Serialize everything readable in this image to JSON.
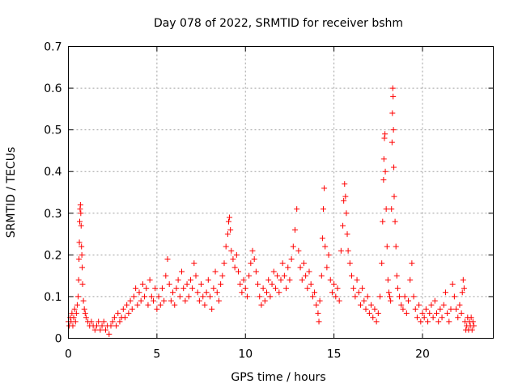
{
  "chart_data": {
    "type": "scatter",
    "title": "Day 078 of 2022, SRMTID for receiver bshm",
    "xlabel": "GPS time / hours",
    "ylabel": "SRMTID / TECUs",
    "xlim": [
      0,
      24
    ],
    "ylim": [
      0,
      0.7
    ],
    "xticks": [
      0,
      5,
      10,
      15,
      20
    ],
    "yticks": [
      0,
      0.1,
      0.2,
      0.3,
      0.4,
      0.5,
      0.6,
      0.7
    ],
    "xtick_labels": [
      "0",
      "5",
      "10",
      "15",
      "20"
    ],
    "ytick_labels": [
      "0",
      "0.1",
      "0.2",
      "0.3",
      "0.4",
      "0.5",
      "0.6",
      "0.7"
    ],
    "grid": true,
    "marker": "+",
    "color": "#ff0000",
    "series": [
      {
        "name": "SRMTID",
        "points": [
          [
            0.0,
            0.04
          ],
          [
            0.05,
            0.03
          ],
          [
            0.1,
            0.05
          ],
          [
            0.15,
            0.04
          ],
          [
            0.2,
            0.06
          ],
          [
            0.25,
            0.03
          ],
          [
            0.3,
            0.05
          ],
          [
            0.35,
            0.07
          ],
          [
            0.4,
            0.04
          ],
          [
            0.45,
            0.06
          ],
          [
            0.5,
            0.08
          ],
          [
            0.55,
            0.1
          ],
          [
            0.58,
            0.14
          ],
          [
            0.6,
            0.19
          ],
          [
            0.62,
            0.23
          ],
          [
            0.64,
            0.28
          ],
          [
            0.66,
            0.31
          ],
          [
            0.68,
            0.32
          ],
          [
            0.7,
            0.3
          ],
          [
            0.72,
            0.27
          ],
          [
            0.74,
            0.22
          ],
          [
            0.76,
            0.2
          ],
          [
            0.78,
            0.17
          ],
          [
            0.8,
            0.13
          ],
          [
            0.85,
            0.09
          ],
          [
            0.9,
            0.07
          ],
          [
            0.95,
            0.06
          ],
          [
            1.0,
            0.05
          ],
          [
            1.1,
            0.04
          ],
          [
            1.2,
            0.03
          ],
          [
            1.3,
            0.04
          ],
          [
            1.4,
            0.03
          ],
          [
            1.5,
            0.02
          ],
          [
            1.6,
            0.03
          ],
          [
            1.7,
            0.04
          ],
          [
            1.8,
            0.02
          ],
          [
            1.9,
            0.03
          ],
          [
            2.0,
            0.04
          ],
          [
            2.1,
            0.02
          ],
          [
            2.2,
            0.03
          ],
          [
            2.3,
            0.01
          ],
          [
            2.4,
            0.03
          ],
          [
            2.5,
            0.04
          ],
          [
            2.6,
            0.05
          ],
          [
            2.7,
            0.03
          ],
          [
            2.8,
            0.06
          ],
          [
            2.9,
            0.04
          ],
          [
            3.0,
            0.05
          ],
          [
            3.1,
            0.07
          ],
          [
            3.2,
            0.05
          ],
          [
            3.3,
            0.08
          ],
          [
            3.4,
            0.06
          ],
          [
            3.5,
            0.09
          ],
          [
            3.6,
            0.07
          ],
          [
            3.7,
            0.1
          ],
          [
            3.8,
            0.12
          ],
          [
            3.9,
            0.08
          ],
          [
            4.0,
            0.11
          ],
          [
            4.1,
            0.09
          ],
          [
            4.2,
            0.13
          ],
          [
            4.3,
            0.1
          ],
          [
            4.4,
            0.12
          ],
          [
            4.5,
            0.08
          ],
          [
            4.6,
            0.14
          ],
          [
            4.7,
            0.1
          ],
          [
            4.8,
            0.09
          ],
          [
            4.9,
            0.12
          ],
          [
            5.0,
            0.07
          ],
          [
            5.1,
            0.1
          ],
          [
            5.2,
            0.08
          ],
          [
            5.3,
            0.12
          ],
          [
            5.4,
            0.09
          ],
          [
            5.5,
            0.15
          ],
          [
            5.6,
            0.19
          ],
          [
            5.7,
            0.13
          ],
          [
            5.8,
            0.09
          ],
          [
            5.9,
            0.11
          ],
          [
            6.0,
            0.08
          ],
          [
            6.1,
            0.12
          ],
          [
            6.2,
            0.14
          ],
          [
            6.3,
            0.1
          ],
          [
            6.4,
            0.16
          ],
          [
            6.5,
            0.12
          ],
          [
            6.6,
            0.09
          ],
          [
            6.7,
            0.13
          ],
          [
            6.8,
            0.1
          ],
          [
            6.9,
            0.14
          ],
          [
            7.0,
            0.12
          ],
          [
            7.1,
            0.18
          ],
          [
            7.2,
            0.15
          ],
          [
            7.3,
            0.11
          ],
          [
            7.4,
            0.09
          ],
          [
            7.5,
            0.13
          ],
          [
            7.6,
            0.1
          ],
          [
            7.7,
            0.08
          ],
          [
            7.8,
            0.11
          ],
          [
            7.9,
            0.14
          ],
          [
            8.0,
            0.1
          ],
          [
            8.1,
            0.07
          ],
          [
            8.2,
            0.12
          ],
          [
            8.3,
            0.16
          ],
          [
            8.4,
            0.11
          ],
          [
            8.5,
            0.09
          ],
          [
            8.6,
            0.13
          ],
          [
            8.7,
            0.15
          ],
          [
            8.8,
            0.18
          ],
          [
            8.9,
            0.22
          ],
          [
            9.0,
            0.25
          ],
          [
            9.05,
            0.28
          ],
          [
            9.1,
            0.29
          ],
          [
            9.15,
            0.26
          ],
          [
            9.2,
            0.21
          ],
          [
            9.3,
            0.19
          ],
          [
            9.4,
            0.17
          ],
          [
            9.5,
            0.2
          ],
          [
            9.6,
            0.16
          ],
          [
            9.7,
            0.13
          ],
          [
            9.8,
            0.11
          ],
          [
            9.9,
            0.14
          ],
          [
            10.0,
            0.12
          ],
          [
            10.1,
            0.1
          ],
          [
            10.2,
            0.15
          ],
          [
            10.3,
            0.18
          ],
          [
            10.4,
            0.21
          ],
          [
            10.5,
            0.19
          ],
          [
            10.6,
            0.16
          ],
          [
            10.7,
            0.13
          ],
          [
            10.8,
            0.1
          ],
          [
            10.9,
            0.08
          ],
          [
            11.0,
            0.12
          ],
          [
            11.1,
            0.09
          ],
          [
            11.2,
            0.11
          ],
          [
            11.3,
            0.14
          ],
          [
            11.4,
            0.1
          ],
          [
            11.5,
            0.13
          ],
          [
            11.6,
            0.16
          ],
          [
            11.7,
            0.12
          ],
          [
            11.8,
            0.15
          ],
          [
            11.9,
            0.11
          ],
          [
            12.0,
            0.14
          ],
          [
            12.1,
            0.18
          ],
          [
            12.2,
            0.15
          ],
          [
            12.3,
            0.12
          ],
          [
            12.4,
            0.17
          ],
          [
            12.5,
            0.14
          ],
          [
            12.6,
            0.19
          ],
          [
            12.7,
            0.22
          ],
          [
            12.8,
            0.26
          ],
          [
            12.9,
            0.31
          ],
          [
            13.0,
            0.21
          ],
          [
            13.1,
            0.17
          ],
          [
            13.2,
            0.14
          ],
          [
            13.3,
            0.18
          ],
          [
            13.4,
            0.15
          ],
          [
            13.5,
            0.12
          ],
          [
            13.6,
            0.16
          ],
          [
            13.7,
            0.13
          ],
          [
            13.8,
            0.1
          ],
          [
            13.9,
            0.11
          ],
          [
            14.0,
            0.08
          ],
          [
            14.1,
            0.06
          ],
          [
            14.15,
            0.04
          ],
          [
            14.2,
            0.09
          ],
          [
            14.3,
            0.15
          ],
          [
            14.35,
            0.24
          ],
          [
            14.4,
            0.31
          ],
          [
            14.45,
            0.36
          ],
          [
            14.5,
            0.22
          ],
          [
            14.6,
            0.17
          ],
          [
            14.7,
            0.2
          ],
          [
            14.8,
            0.14
          ],
          [
            14.9,
            0.11
          ],
          [
            15.0,
            0.13
          ],
          [
            15.1,
            0.1
          ],
          [
            15.2,
            0.12
          ],
          [
            15.3,
            0.09
          ],
          [
            15.4,
            0.21
          ],
          [
            15.5,
            0.27
          ],
          [
            15.55,
            0.33
          ],
          [
            15.6,
            0.37
          ],
          [
            15.65,
            0.34
          ],
          [
            15.7,
            0.3
          ],
          [
            15.75,
            0.25
          ],
          [
            15.8,
            0.21
          ],
          [
            15.9,
            0.18
          ],
          [
            16.0,
            0.15
          ],
          [
            16.1,
            0.12
          ],
          [
            16.2,
            0.1
          ],
          [
            16.3,
            0.14
          ],
          [
            16.4,
            0.11
          ],
          [
            16.5,
            0.08
          ],
          [
            16.6,
            0.12
          ],
          [
            16.7,
            0.09
          ],
          [
            16.8,
            0.07
          ],
          [
            16.9,
            0.1
          ],
          [
            17.0,
            0.06
          ],
          [
            17.1,
            0.08
          ],
          [
            17.2,
            0.05
          ],
          [
            17.3,
            0.07
          ],
          [
            17.4,
            0.04
          ],
          [
            17.5,
            0.06
          ],
          [
            17.6,
            0.1
          ],
          [
            17.7,
            0.18
          ],
          [
            17.75,
            0.28
          ],
          [
            17.8,
            0.38
          ],
          [
            17.82,
            0.43
          ],
          [
            17.85,
            0.48
          ],
          [
            17.88,
            0.49
          ],
          [
            17.9,
            0.4
          ],
          [
            17.95,
            0.31
          ],
          [
            18.0,
            0.22
          ],
          [
            18.05,
            0.14
          ],
          [
            18.1,
            0.11
          ],
          [
            18.15,
            0.1
          ],
          [
            18.2,
            0.09
          ],
          [
            18.25,
            0.31
          ],
          [
            18.28,
            0.47
          ],
          [
            18.3,
            0.54
          ],
          [
            18.32,
            0.6
          ],
          [
            18.34,
            0.58
          ],
          [
            18.36,
            0.5
          ],
          [
            18.38,
            0.41
          ],
          [
            18.4,
            0.34
          ],
          [
            18.45,
            0.28
          ],
          [
            18.5,
            0.22
          ],
          [
            18.55,
            0.15
          ],
          [
            18.6,
            0.12
          ],
          [
            18.7,
            0.1
          ],
          [
            18.8,
            0.08
          ],
          [
            18.9,
            0.07
          ],
          [
            19.0,
            0.1
          ],
          [
            19.1,
            0.06
          ],
          [
            19.2,
            0.09
          ],
          [
            19.3,
            0.14
          ],
          [
            19.4,
            0.18
          ],
          [
            19.5,
            0.1
          ],
          [
            19.6,
            0.07
          ],
          [
            19.7,
            0.05
          ],
          [
            19.8,
            0.08
          ],
          [
            19.9,
            0.04
          ],
          [
            20.0,
            0.06
          ],
          [
            20.1,
            0.05
          ],
          [
            20.2,
            0.07
          ],
          [
            20.3,
            0.04
          ],
          [
            20.4,
            0.06
          ],
          [
            20.5,
            0.08
          ],
          [
            20.6,
            0.05
          ],
          [
            20.7,
            0.09
          ],
          [
            20.8,
            0.06
          ],
          [
            20.9,
            0.04
          ],
          [
            21.0,
            0.07
          ],
          [
            21.1,
            0.05
          ],
          [
            21.2,
            0.08
          ],
          [
            21.3,
            0.11
          ],
          [
            21.4,
            0.06
          ],
          [
            21.5,
            0.04
          ],
          [
            21.6,
            0.07
          ],
          [
            21.7,
            0.13
          ],
          [
            21.8,
            0.1
          ],
          [
            21.9,
            0.07
          ],
          [
            22.0,
            0.05
          ],
          [
            22.1,
            0.08
          ],
          [
            22.2,
            0.06
          ],
          [
            22.25,
            0.11
          ],
          [
            22.3,
            0.14
          ],
          [
            22.35,
            0.12
          ],
          [
            22.4,
            0.04
          ],
          [
            22.45,
            0.02
          ],
          [
            22.5,
            0.03
          ],
          [
            22.55,
            0.05
          ],
          [
            22.6,
            0.02
          ],
          [
            22.65,
            0.04
          ],
          [
            22.7,
            0.03
          ],
          [
            22.75,
            0.05
          ],
          [
            22.8,
            0.02
          ],
          [
            22.85,
            0.04
          ],
          [
            22.9,
            0.03
          ]
        ]
      }
    ]
  }
}
